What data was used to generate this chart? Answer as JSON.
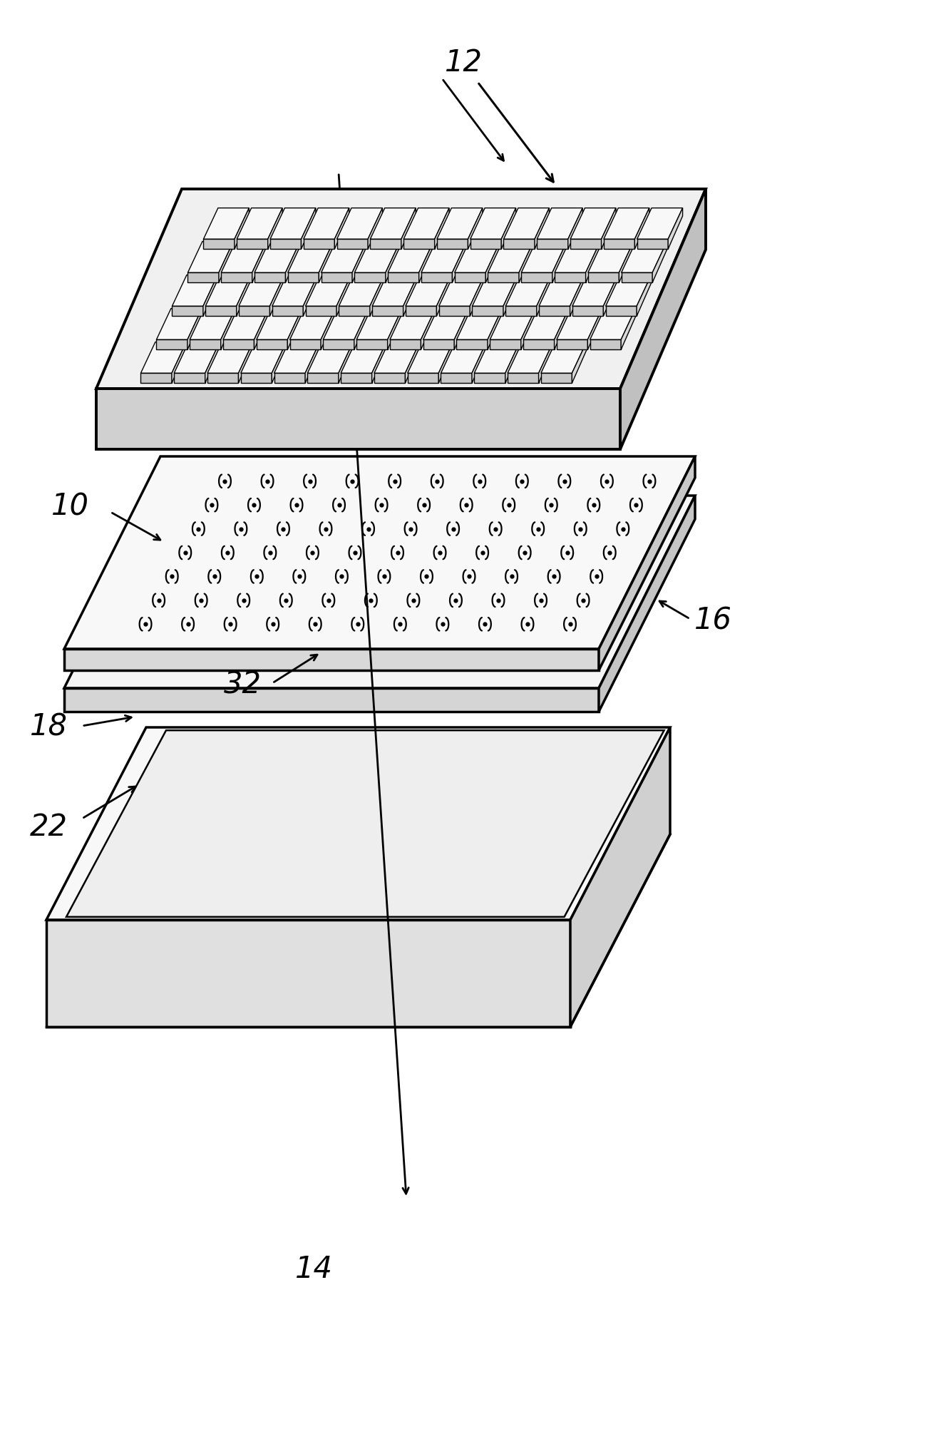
{
  "background_color": "#ffffff",
  "line_color": "#000000",
  "figure_width": 13.06,
  "figure_height": 20.04,
  "dpi": 100
}
